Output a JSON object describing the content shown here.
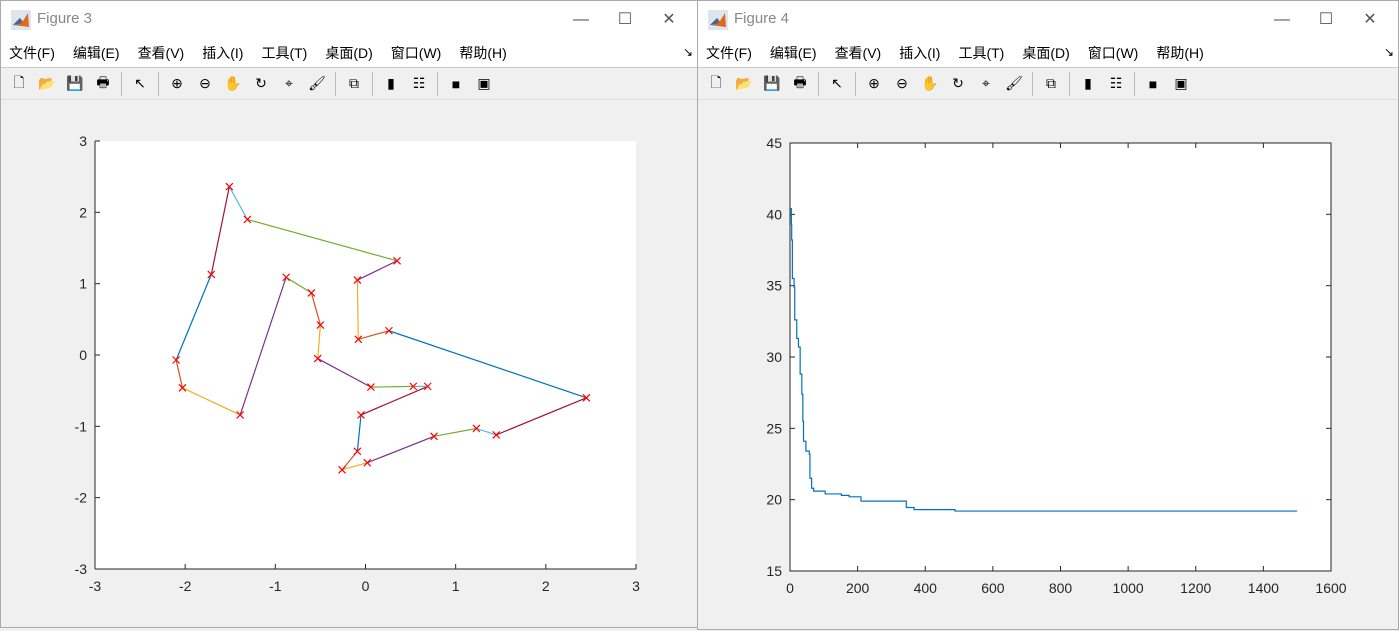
{
  "windows": [
    {
      "title": "Figure 3",
      "menu": [
        "文件(F)",
        "编辑(E)",
        "查看(V)",
        "插入(I)",
        "工具(T)",
        "桌面(D)",
        "窗口(W)",
        "帮助(H)"
      ]
    },
    {
      "title": "Figure 4",
      "menu": [
        "文件(F)",
        "编辑(E)",
        "查看(V)",
        "插入(I)",
        "工具(T)",
        "桌面(D)",
        "窗口(W)",
        "帮助(H)"
      ]
    }
  ],
  "toolbar_icons": [
    "new-file-icon",
    "open-folder-icon",
    "save-icon",
    "print-icon",
    "pointer-icon",
    "zoom-in-icon",
    "zoom-out-icon",
    "pan-hand-icon",
    "rotate-3d-icon",
    "data-cursor-icon",
    "brush-icon",
    "link-plot-icon",
    "colorbar-icon",
    "legend-icon",
    "hide-plot-tools-icon",
    "show-plot-tools-icon"
  ],
  "chart_data": [
    {
      "type": "line",
      "marker": "x",
      "marker_color": "#FF0000",
      "xlim": [
        -3,
        3
      ],
      "ylim": [
        -3,
        3
      ],
      "xticks": [
        "-3",
        "-2",
        "-1",
        "0",
        "1",
        "2",
        "3"
      ],
      "yticks": [
        "-3",
        "-2",
        "-1",
        "0",
        "1",
        "2",
        "3"
      ],
      "points": [
        [
          -1.51,
          2.36
        ],
        [
          -1.31,
          1.9
        ],
        [
          0.35,
          1.32
        ],
        [
          -0.09,
          1.05
        ],
        [
          -0.08,
          0.22
        ],
        [
          0.26,
          0.34
        ],
        [
          2.45,
          -0.6
        ],
        [
          1.45,
          -1.12
        ],
        [
          1.23,
          -1.03
        ],
        [
          0.76,
          -1.14
        ],
        [
          0.02,
          -1.51
        ],
        [
          -0.26,
          -1.61
        ],
        [
          -0.09,
          -1.35
        ],
        [
          -0.05,
          -0.84
        ],
        [
          0.69,
          -0.44
        ],
        [
          0.53,
          -0.44
        ],
        [
          0.06,
          -0.45
        ],
        [
          -0.53,
          -0.05
        ],
        [
          -0.5,
          0.42
        ],
        [
          -0.6,
          0.87
        ],
        [
          -0.88,
          1.09
        ],
        [
          -1.39,
          -0.84
        ],
        [
          -2.03,
          -0.46
        ],
        [
          -2.1,
          -0.07
        ],
        [
          -1.71,
          1.13
        ]
      ],
      "segment_colors": [
        "#4DBEEE",
        "#77AC30",
        "#7E2F8E",
        "#EDB120",
        "#D95319",
        "#0072BD",
        "#A2142F",
        "#4DBEEE",
        "#77AC30",
        "#7E2F8E",
        "#EDB120",
        "#D95319",
        "#0072BD",
        "#A2142F",
        "#4DBEEE",
        "#77AC30",
        "#7E2F8E",
        "#EDB120",
        "#D95319",
        "#77AC30",
        "#7E2F8E",
        "#EDB120",
        "#D95319",
        "#0072BD",
        "#A2142F"
      ],
      "closed": true,
      "grid": false
    },
    {
      "type": "line",
      "color": "#0072BD",
      "xlim": [
        0,
        1600
      ],
      "ylim": [
        15,
        45
      ],
      "xticks": [
        "0",
        "200",
        "400",
        "600",
        "800",
        "1000",
        "1200",
        "1400",
        "1600"
      ],
      "yticks": [
        "15",
        "20",
        "25",
        "30",
        "35",
        "40",
        "45"
      ],
      "x": [
        0,
        4,
        5,
        7,
        12,
        14,
        20,
        25,
        30,
        35,
        38,
        40,
        47,
        57,
        59,
        64,
        70,
        102,
        104,
        152,
        175,
        207,
        210,
        337,
        344,
        367,
        485,
        488,
        1500
      ],
      "y": [
        40.4,
        39.3,
        38.2,
        35.5,
        34.9,
        32.6,
        31.3,
        30.7,
        28.8,
        27.4,
        25.5,
        24.1,
        23.4,
        23.2,
        21.5,
        20.8,
        20.6,
        20.6,
        20.4,
        20.3,
        20.2,
        20.2,
        19.9,
        19.9,
        19.45,
        19.3,
        19.3,
        19.2,
        19.2
      ],
      "grid": false
    }
  ]
}
